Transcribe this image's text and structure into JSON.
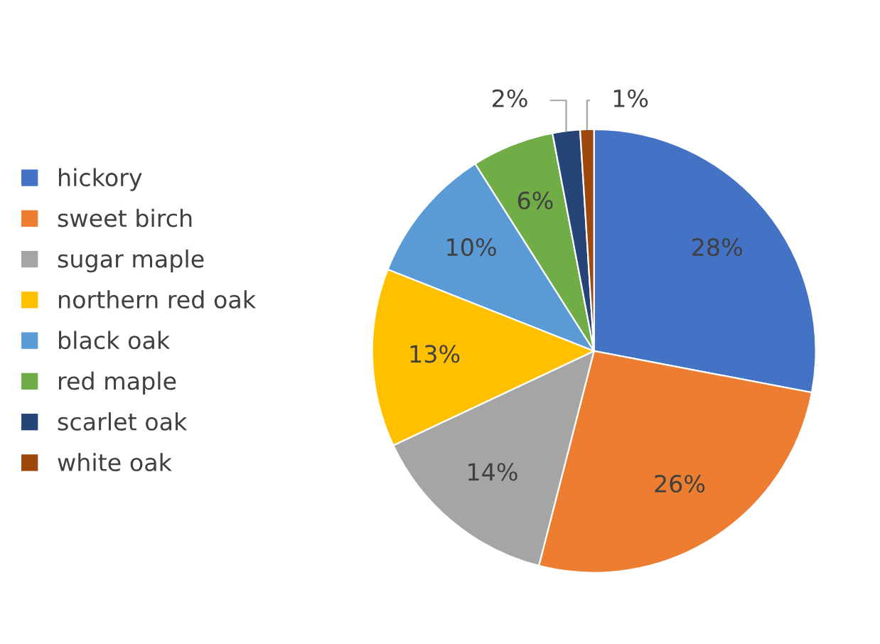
{
  "chart_data": {
    "type": "pie",
    "categories": [
      "hickory",
      "sweet birch",
      "sugar maple",
      "northern red oak",
      "black oak",
      "red maple",
      "scarlet oak",
      "white oak"
    ],
    "values": [
      28,
      26,
      14,
      13,
      10,
      6,
      2,
      1
    ],
    "colors": [
      "#4472c4",
      "#ed7d31",
      "#a5a5a5",
      "#ffc000",
      "#5b9bd5",
      "#70ad47",
      "#264478",
      "#9e480e"
    ],
    "value_labels": [
      "28%",
      "26%",
      "14%",
      "13%",
      "10%",
      "6%",
      "2%",
      "1%"
    ],
    "legend": "left"
  }
}
